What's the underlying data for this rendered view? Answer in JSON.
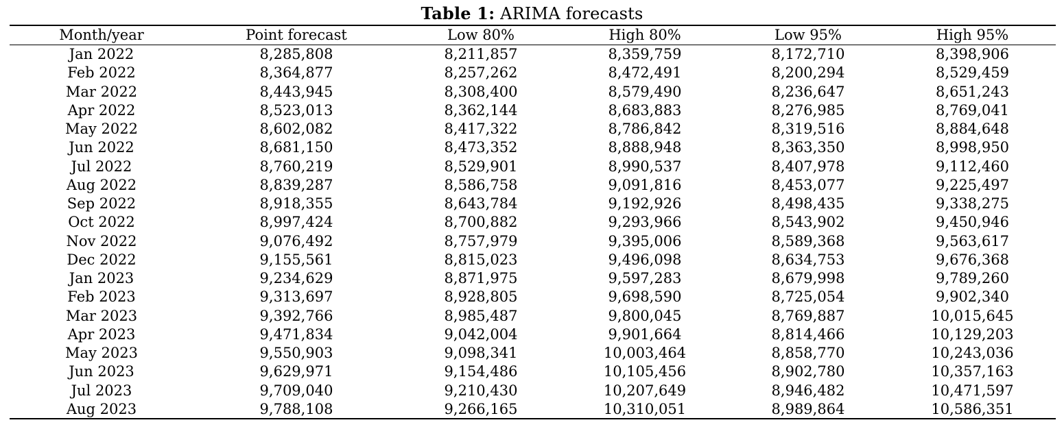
{
  "caption": {
    "label": "Table 1:",
    "title": "ARIMA forecasts"
  },
  "table": {
    "headers": [
      "Month/year",
      "Point forecast",
      "Low 80%",
      "High 80%",
      "Low 95%",
      "High 95%"
    ],
    "rows": [
      [
        "Jan 2022",
        "8,285,808",
        "8,211,857",
        "8,359,759",
        "8,172,710",
        "8,398,906"
      ],
      [
        "Feb 2022",
        "8,364,877",
        "8,257,262",
        "8,472,491",
        "8,200,294",
        "8,529,459"
      ],
      [
        "Mar 2022",
        "8,443,945",
        "8,308,400",
        "8,579,490",
        "8,236,647",
        "8,651,243"
      ],
      [
        "Apr 2022",
        "8,523,013",
        "8,362,144",
        "8,683,883",
        "8,276,985",
        "8,769,041"
      ],
      [
        "May 2022",
        "8,602,082",
        "8,417,322",
        "8,786,842",
        "8,319,516",
        "8,884,648"
      ],
      [
        "Jun 2022",
        "8,681,150",
        "8,473,352",
        "8,888,948",
        "8,363,350",
        "8,998,950"
      ],
      [
        "Jul 2022",
        "8,760,219",
        "8,529,901",
        "8,990,537",
        "8,407,978",
        "9,112,460"
      ],
      [
        "Aug 2022",
        "8,839,287",
        "8,586,758",
        "9,091,816",
        "8,453,077",
        "9,225,497"
      ],
      [
        "Sep 2022",
        "8,918,355",
        "8,643,784",
        "9,192,926",
        "8,498,435",
        "9,338,275"
      ],
      [
        "Oct 2022",
        "8,997,424",
        "8,700,882",
        "9,293,966",
        "8,543,902",
        "9,450,946"
      ],
      [
        "Nov 2022",
        "9,076,492",
        "8,757,979",
        "9,395,006",
        "8,589,368",
        "9,563,617"
      ],
      [
        "Dec 2022",
        "9,155,561",
        "8,815,023",
        "9,496,098",
        "8,634,753",
        "9,676,368"
      ],
      [
        "Jan 2023",
        "9,234,629",
        "8,871,975",
        "9,597,283",
        "8,679,998",
        "9,789,260"
      ],
      [
        "Feb 2023",
        "9,313,697",
        "8,928,805",
        "9,698,590",
        "8,725,054",
        "9,902,340"
      ],
      [
        "Mar 2023",
        "9,392,766",
        "8,985,487",
        "9,800,045",
        "8,769,887",
        "10,015,645"
      ],
      [
        "Apr 2023",
        "9,471,834",
        "9,042,004",
        "9,901,664",
        "8,814,466",
        "10,129,203"
      ],
      [
        "May 2023",
        "9,550,903",
        "9,098,341",
        "10,003,464",
        "8,858,770",
        "10,243,036"
      ],
      [
        "Jun 2023",
        "9,629,971",
        "9,154,486",
        "10,105,456",
        "8,902,780",
        "10,357,163"
      ],
      [
        "Jul 2023",
        "9,709,040",
        "9,210,430",
        "10,207,649",
        "8,946,482",
        "10,471,597"
      ],
      [
        "Aug 2023",
        "9,788,108",
        "9,266,165",
        "10,310,051",
        "8,989,864",
        "10,586,351"
      ]
    ]
  }
}
